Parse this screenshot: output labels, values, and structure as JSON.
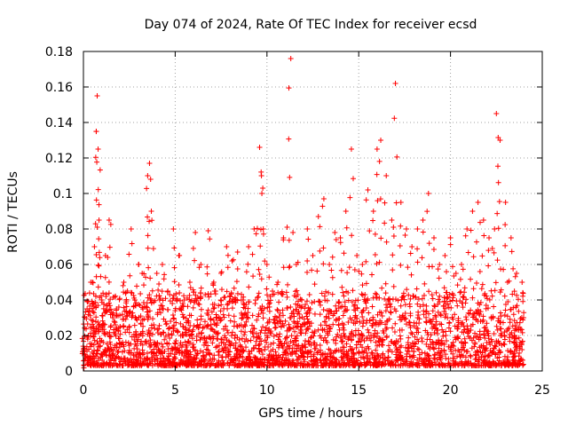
{
  "chart_data": {
    "type": "scatter",
    "title": "Day 074 of 2024, Rate Of TEC Index for receiver ecsd",
    "xlabel": "GPS time / hours",
    "ylabel": "ROTI / TECUs",
    "xlim": [
      0,
      25
    ],
    "ylim": [
      0,
      0.18
    ],
    "x_ticks": [
      "0",
      "5",
      "10",
      "15",
      "20",
      "25"
    ],
    "y_ticks": [
      "0",
      "0.02",
      "0.04",
      "0.06",
      "0.08",
      "0.1",
      "0.12",
      "0.14",
      "0.16",
      "0.18"
    ],
    "grid": true,
    "marker": "+",
    "color": "#ff0000",
    "series": [
      {
        "x": [
          0.0,
          0.2,
          0.4,
          0.6,
          0.7,
          0.75,
          0.8,
          0.85,
          1.0,
          1.2,
          1.4,
          1.6,
          1.8,
          2.0,
          2.2,
          2.4,
          2.6,
          2.8,
          3.0,
          3.2,
          3.5,
          3.6,
          3.7,
          4.0,
          4.3,
          4.6,
          4.9,
          5.2,
          5.5,
          5.8,
          6.1,
          6.4,
          6.8,
          7.1,
          7.2,
          7.5,
          7.8,
          8.1,
          8.4,
          8.7,
          9.0,
          9.3,
          9.6,
          9.7,
          9.8,
          10.0,
          10.3,
          10.6,
          10.9,
          11.1,
          11.3,
          11.6,
          11.9,
          12.2,
          12.5,
          12.8,
          13.1,
          13.4,
          13.7,
          14.0,
          14.3,
          14.6,
          14.9,
          15.2,
          15.5,
          15.8,
          16.0,
          16.2,
          16.5,
          16.8,
          17.0,
          17.3,
          17.6,
          17.9,
          18.2,
          18.5,
          18.8,
          19.1,
          19.4,
          19.7,
          20.0,
          20.3,
          20.6,
          20.9,
          21.2,
          21.5,
          21.8,
          22.1,
          22.4,
          22.5,
          22.7,
          23.0,
          23.3,
          23.6,
          23.9
        ],
        "y": [
          0.012,
          0.035,
          0.05,
          0.07,
          0.135,
          0.155,
          0.125,
          0.085,
          0.04,
          0.065,
          0.085,
          0.03,
          0.035,
          0.025,
          0.05,
          0.045,
          0.08,
          0.04,
          0.06,
          0.055,
          0.11,
          0.117,
          0.09,
          0.055,
          0.06,
          0.045,
          0.08,
          0.065,
          0.04,
          0.05,
          0.078,
          0.06,
          0.079,
          0.05,
          0.045,
          0.055,
          0.07,
          0.062,
          0.067,
          0.04,
          0.07,
          0.08,
          0.126,
          0.11,
          0.08,
          0.06,
          0.045,
          0.05,
          0.075,
          0.081,
          0.176,
          0.06,
          0.04,
          0.08,
          0.065,
          0.087,
          0.097,
          0.06,
          0.078,
          0.075,
          0.09,
          0.125,
          0.065,
          0.06,
          0.102,
          0.09,
          0.125,
          0.13,
          0.11,
          0.085,
          0.162,
          0.095,
          0.08,
          0.07,
          0.08,
          0.085,
          0.1,
          0.075,
          0.06,
          0.065,
          0.075,
          0.055,
          0.06,
          0.08,
          0.09,
          0.095,
          0.085,
          0.075,
          0.08,
          0.145,
          0.13,
          0.095,
          0.075,
          0.055,
          0.05
        ]
      }
    ],
    "noise_floor": {
      "x_range": [
        0,
        24
      ],
      "y_range": [
        0.003,
        0.045
      ],
      "count": 2600,
      "note_hidden": false
    }
  }
}
